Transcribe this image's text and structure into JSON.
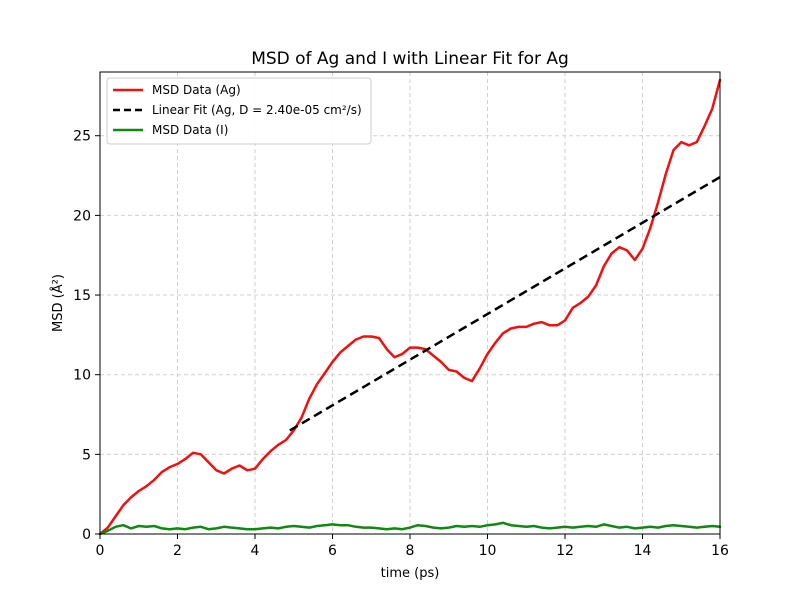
{
  "chart_data": {
    "type": "line",
    "title": "MSD of Ag and I with Linear Fit for Ag",
    "xlabel": "time (ps)",
    "ylabel": "MSD (Å²)",
    "xlim": [
      0,
      16
    ],
    "ylim": [
      0,
      29
    ],
    "xticks": [
      0,
      2,
      4,
      6,
      8,
      10,
      12,
      14,
      16
    ],
    "yticks": [
      0,
      5,
      10,
      15,
      20,
      25
    ],
    "grid": true,
    "legend_position": "top-left",
    "series": [
      {
        "name": "MSD Data (Ag)",
        "color": "#ee1111",
        "style": "solid",
        "x": [
          0,
          0.2,
          0.4,
          0.6,
          0.8,
          1.0,
          1.2,
          1.4,
          1.6,
          1.8,
          2.0,
          2.2,
          2.4,
          2.6,
          2.8,
          3.0,
          3.2,
          3.4,
          3.6,
          3.8,
          4.0,
          4.2,
          4.4,
          4.6,
          4.8,
          5.0,
          5.2,
          5.4,
          5.6,
          5.8,
          6.0,
          6.2,
          6.4,
          6.6,
          6.8,
          7.0,
          7.2,
          7.4,
          7.6,
          7.8,
          8.0,
          8.2,
          8.4,
          8.6,
          8.8,
          9.0,
          9.2,
          9.4,
          9.6,
          9.8,
          10.0,
          10.2,
          10.4,
          10.6,
          10.8,
          11.0,
          11.2,
          11.4,
          11.6,
          11.8,
          12.0,
          12.2,
          12.4,
          12.6,
          12.8,
          13.0,
          13.2,
          13.4,
          13.6,
          13.8,
          14.0,
          14.2,
          14.4,
          14.6,
          14.8,
          15.0,
          15.2,
          15.4,
          15.6,
          15.8,
          16.0
        ],
        "values": [
          0,
          0.4,
          1.1,
          1.8,
          2.3,
          2.7,
          3.0,
          3.4,
          3.9,
          4.2,
          4.4,
          4.7,
          5.1,
          5.0,
          4.5,
          4.0,
          3.8,
          4.1,
          4.3,
          4.0,
          4.1,
          4.7,
          5.2,
          5.6,
          5.9,
          6.5,
          7.3,
          8.5,
          9.4,
          10.1,
          10.8,
          11.4,
          11.8,
          12.2,
          12.4,
          12.4,
          12.3,
          11.6,
          11.1,
          11.3,
          11.7,
          11.7,
          11.6,
          11.2,
          10.8,
          10.3,
          10.2,
          9.8,
          9.6,
          10.4,
          11.3,
          12.0,
          12.6,
          12.9,
          13.0,
          13.0,
          13.2,
          13.3,
          13.1,
          13.1,
          13.4,
          14.2,
          14.5,
          14.9,
          15.6,
          16.8,
          17.6,
          18.0,
          17.8,
          17.2,
          17.9,
          19.2,
          20.8,
          22.6,
          24.1,
          24.6,
          24.4,
          24.6,
          25.6,
          26.7,
          28.5
        ]
      },
      {
        "name": "Linear Fit (Ag, D = 2.40e-05 cm²/s)",
        "color": "#000000",
        "style": "dashed",
        "x": [
          4.9,
          16.0
        ],
        "values": [
          6.5,
          22.4
        ]
      },
      {
        "name": "MSD Data (I)",
        "color": "#118811",
        "style": "solid",
        "x": [
          0,
          0.2,
          0.4,
          0.6,
          0.8,
          1.0,
          1.2,
          1.4,
          1.6,
          1.8,
          2.0,
          2.2,
          2.4,
          2.6,
          2.8,
          3.0,
          3.2,
          3.4,
          3.6,
          3.8,
          4.0,
          4.2,
          4.4,
          4.6,
          4.8,
          5.0,
          5.2,
          5.4,
          5.6,
          5.8,
          6.0,
          6.2,
          6.4,
          6.6,
          6.8,
          7.0,
          7.2,
          7.4,
          7.6,
          7.8,
          8.0,
          8.2,
          8.4,
          8.6,
          8.8,
          9.0,
          9.2,
          9.4,
          9.6,
          9.8,
          10.0,
          10.2,
          10.4,
          10.6,
          10.8,
          11.0,
          11.2,
          11.4,
          11.6,
          11.8,
          12.0,
          12.2,
          12.4,
          12.6,
          12.8,
          13.0,
          13.2,
          13.4,
          13.6,
          13.8,
          14.0,
          14.2,
          14.4,
          14.6,
          14.8,
          15.0,
          15.2,
          15.4,
          15.6,
          15.8,
          16.0
        ],
        "values": [
          0,
          0.2,
          0.45,
          0.55,
          0.35,
          0.5,
          0.45,
          0.5,
          0.35,
          0.3,
          0.35,
          0.3,
          0.4,
          0.45,
          0.3,
          0.35,
          0.45,
          0.4,
          0.35,
          0.3,
          0.3,
          0.35,
          0.4,
          0.35,
          0.45,
          0.5,
          0.45,
          0.4,
          0.5,
          0.55,
          0.6,
          0.55,
          0.55,
          0.45,
          0.4,
          0.4,
          0.35,
          0.3,
          0.35,
          0.3,
          0.4,
          0.55,
          0.5,
          0.4,
          0.35,
          0.4,
          0.5,
          0.45,
          0.5,
          0.45,
          0.55,
          0.6,
          0.7,
          0.55,
          0.5,
          0.45,
          0.5,
          0.4,
          0.35,
          0.4,
          0.45,
          0.4,
          0.45,
          0.5,
          0.45,
          0.6,
          0.5,
          0.4,
          0.45,
          0.35,
          0.4,
          0.45,
          0.4,
          0.5,
          0.55,
          0.5,
          0.45,
          0.4,
          0.45,
          0.5,
          0.45
        ]
      }
    ]
  }
}
